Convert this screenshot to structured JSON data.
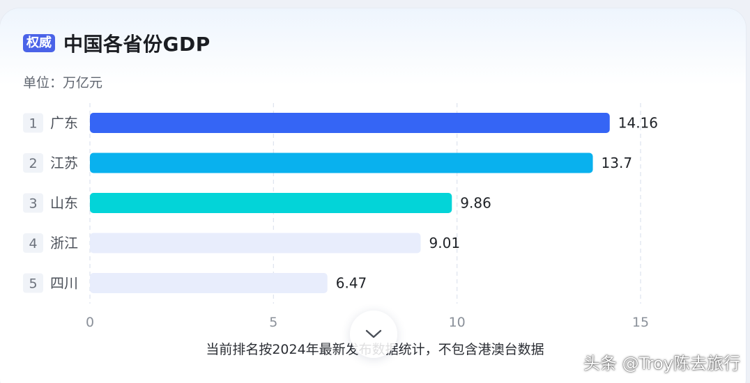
{
  "header": {
    "badge": "权威",
    "title": "中国各省份GDP"
  },
  "unit_label": "单位：万亿元",
  "footnote": "当前排名按2024年最新发布数据统计，不包含港澳台数据",
  "watermark": "头条 @Troy陈去旅行",
  "icons": {
    "expand": "chevron-down-icon"
  },
  "colors": {
    "badge": "#4a63e8",
    "rank_bg": "#f0f3f8",
    "grid": "#dde3ee"
  },
  "chart_data": {
    "type": "bar",
    "orientation": "horizontal",
    "categories": [
      "广东",
      "江苏",
      "山东",
      "浙江",
      "四川"
    ],
    "ranks": [
      "1",
      "2",
      "3",
      "4",
      "5"
    ],
    "values": [
      14.16,
      13.7,
      9.86,
      9.01,
      6.47
    ],
    "value_labels": [
      "14.16",
      "13.7",
      "9.86",
      "9.01",
      "6.47"
    ],
    "bar_colors": [
      "#3565f5",
      "#09b1ee",
      "#03d4d8",
      "#e8edfc",
      "#e8edfc"
    ],
    "xlim": [
      0,
      15
    ],
    "xticks": [
      0,
      5,
      10,
      15
    ],
    "xtick_labels": [
      "0",
      "5",
      "10",
      "15"
    ],
    "grid": true,
    "grid_style": "dashed",
    "title": "",
    "xlabel": "",
    "ylabel": ""
  }
}
